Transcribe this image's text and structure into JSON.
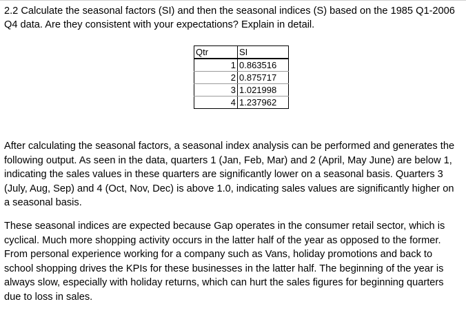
{
  "question": {
    "text": "2.2 Calculate the seasonal factors (SI) and then the seasonal indices (S) based on the 1985 Q1-2006 Q4 data. Are they consistent with your expectations? Explain in detail."
  },
  "table": {
    "headers": [
      "Qtr",
      "SI"
    ],
    "rows": [
      {
        "qtr": "1",
        "si": "0.863516"
      },
      {
        "qtr": "2",
        "si": "0.875717"
      },
      {
        "qtr": "3",
        "si": "1.021998"
      },
      {
        "qtr": "4",
        "si": "1.237962"
      }
    ]
  },
  "answer": {
    "paragraph1": "After calculating the seasonal factors, a seasonal index analysis can be performed and generates the following output. As seen in the data, quarters 1 (Jan, Feb, Mar) and 2 (April, May June) are below 1, indicating the sales values in these quarters are significantly lower on a seasonal basis. Quarters 3 (July, Aug, Sep) and 4 (Oct, Nov, Dec) is above 1.0, indicating sales values are significantly higher on a seasonal basis.",
    "paragraph2": "These seasonal indices are expected because Gap operates in the consumer retail sector, which is cyclical. Much more shopping activity occurs in the latter half of the year as opposed to the former. From personal experience working for a company such as Vans, holiday promotions and back to school shopping drives the KPIs for these businesses in the latter half. The beginning of the year is always slow, especially with holiday returns, which can hurt the sales figures for beginning quarters due to loss in sales."
  }
}
